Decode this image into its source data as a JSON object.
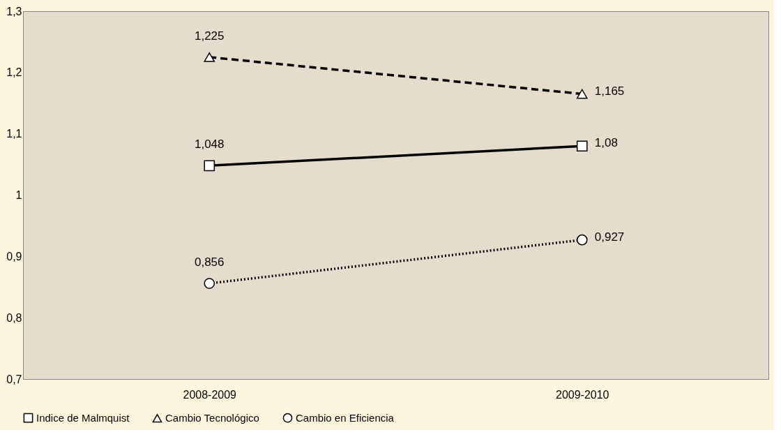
{
  "chart_data": {
    "type": "line",
    "categories": [
      "2008-2009",
      "2009-2010"
    ],
    "series": [
      {
        "name": "Indice de Malmquist",
        "color": "#000000",
        "values": [
          1.048,
          1.08
        ],
        "value_labels": [
          "1,048",
          "1,08"
        ],
        "marker": "square",
        "line_style": "solid"
      },
      {
        "name": "Cambio Tecnológico",
        "color": "#000000",
        "values": [
          1.225,
          1.165
        ],
        "value_labels": [
          "1,225",
          "1,165"
        ],
        "marker": "triangle",
        "line_style": "dashed"
      },
      {
        "name": "Cambio en Eficiencia",
        "color": "#000000",
        "values": [
          0.856,
          0.927
        ],
        "value_labels": [
          "0,856",
          "0,927"
        ],
        "marker": "circle",
        "line_style": "dotted"
      }
    ],
    "ylim": [
      0.7,
      1.3
    ],
    "yticks": [
      {
        "value": 0.7,
        "label": "0,7"
      },
      {
        "value": 0.8,
        "label": "0,8"
      },
      {
        "value": 0.9,
        "label": "0,9"
      },
      {
        "value": 1,
        "label": "1"
      },
      {
        "value": 1.1,
        "label": "1,1"
      },
      {
        "value": 1.2,
        "label": "1,2"
      },
      {
        "value": 1.3,
        "label": "1,3"
      }
    ],
    "grid": false,
    "legend": "bottom"
  }
}
